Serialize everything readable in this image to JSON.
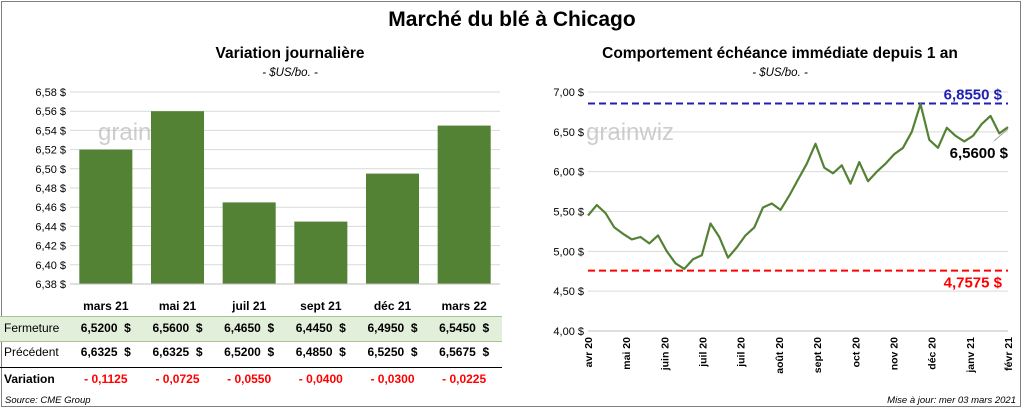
{
  "title": "Marché du blé à Chicago",
  "chart_data": [
    {
      "type": "bar",
      "title": "Variation journalière",
      "subtitle": "- $US/bo. -",
      "categories": [
        "mars 21",
        "mai 21",
        "juil 21",
        "sept 21",
        "déc 21",
        "mars 22"
      ],
      "values": [
        6.52,
        6.56,
        6.465,
        6.445,
        6.495,
        6.545
      ],
      "ylim": [
        6.38,
        6.58
      ],
      "yticks": [
        "6,38 $",
        "6,40 $",
        "6,42 $",
        "6,44 $",
        "6,46 $",
        "6,48 $",
        "6,50 $",
        "6,52 $",
        "6,54 $",
        "6,56 $",
        "6,58 $"
      ],
      "bar_color": "#548235",
      "grid": true
    },
    {
      "type": "line",
      "title": "Comportement échéance immédiate depuis 1 an",
      "subtitle": "- $US/bo. -",
      "ylim": [
        4.0,
        7.0
      ],
      "yticks": [
        "4,00 $",
        "4,50 $",
        "5,00 $",
        "5,50 $",
        "6,00 $",
        "6,50 $",
        "7,00 $"
      ],
      "xticks": [
        "avr 20",
        "mai 20",
        "juin 20",
        "juil 20",
        "juil 20",
        "août 20",
        "sept 20",
        "oct 20",
        "nov 20",
        "déc 20",
        "janv 21",
        "févr 21"
      ],
      "x": [
        "2020-04-01",
        "2020-04-08",
        "2020-04-15",
        "2020-04-22",
        "2020-04-29",
        "2020-05-06",
        "2020-05-13",
        "2020-05-20",
        "2020-05-27",
        "2020-06-03",
        "2020-06-10",
        "2020-06-17",
        "2020-06-24",
        "2020-07-01",
        "2020-07-08",
        "2020-07-15",
        "2020-07-22",
        "2020-07-29",
        "2020-08-05",
        "2020-08-12",
        "2020-08-19",
        "2020-08-26",
        "2020-09-02",
        "2020-09-09",
        "2020-09-16",
        "2020-09-23",
        "2020-09-30",
        "2020-10-07",
        "2020-10-14",
        "2020-10-21",
        "2020-10-28",
        "2020-11-04",
        "2020-11-11",
        "2020-11-18",
        "2020-11-25",
        "2020-12-02",
        "2020-12-09",
        "2020-12-16",
        "2020-12-23",
        "2020-12-30",
        "2021-01-06",
        "2021-01-13",
        "2021-01-20",
        "2021-01-27",
        "2021-02-03",
        "2021-02-10",
        "2021-02-17",
        "2021-02-24",
        "2021-03-03"
      ],
      "values": [
        5.45,
        5.58,
        5.48,
        5.3,
        5.22,
        5.15,
        5.18,
        5.1,
        5.2,
        5.0,
        4.85,
        4.78,
        4.9,
        4.95,
        5.35,
        5.18,
        4.92,
        5.05,
        5.2,
        5.3,
        5.55,
        5.6,
        5.52,
        5.7,
        5.9,
        6.1,
        6.35,
        6.05,
        5.98,
        6.08,
        5.85,
        6.12,
        5.88,
        6.0,
        6.1,
        6.22,
        6.3,
        6.5,
        6.85,
        6.4,
        6.3,
        6.55,
        6.45,
        6.38,
        6.45,
        6.6,
        6.7,
        6.48,
        6.56
      ],
      "annotations": {
        "high": {
          "value": 6.855,
          "label": "6,8550 $",
          "color": "#1f1fb4"
        },
        "low": {
          "value": 4.7575,
          "label": "4,7575 $",
          "color": "#ff0000"
        },
        "last": {
          "label": "6,5600 $"
        }
      },
      "line_color": "#548235",
      "grid": true
    }
  ],
  "table": {
    "rows": [
      {
        "label": "Fermeture",
        "cells": [
          "6,5200  $",
          "6,5600  $",
          "6,4650  $",
          "6,4450  $",
          "6,4950  $",
          "6,5450  $"
        ]
      },
      {
        "label": "Précédent",
        "cells": [
          "6,6325  $",
          "6,6325  $",
          "6,5200  $",
          "6,4850  $",
          "6,5250  $",
          "6,5675  $"
        ]
      },
      {
        "label": "Variation",
        "cells": [
          "- 0,1125",
          "- 0,0725",
          "- 0,0550",
          "- 0,0400",
          "- 0,0300",
          "- 0,0225"
        ]
      }
    ]
  },
  "watermark": "grainwiz",
  "source": "Source: CME Group",
  "update": "Mise à jour: mer 03 mars 2021"
}
